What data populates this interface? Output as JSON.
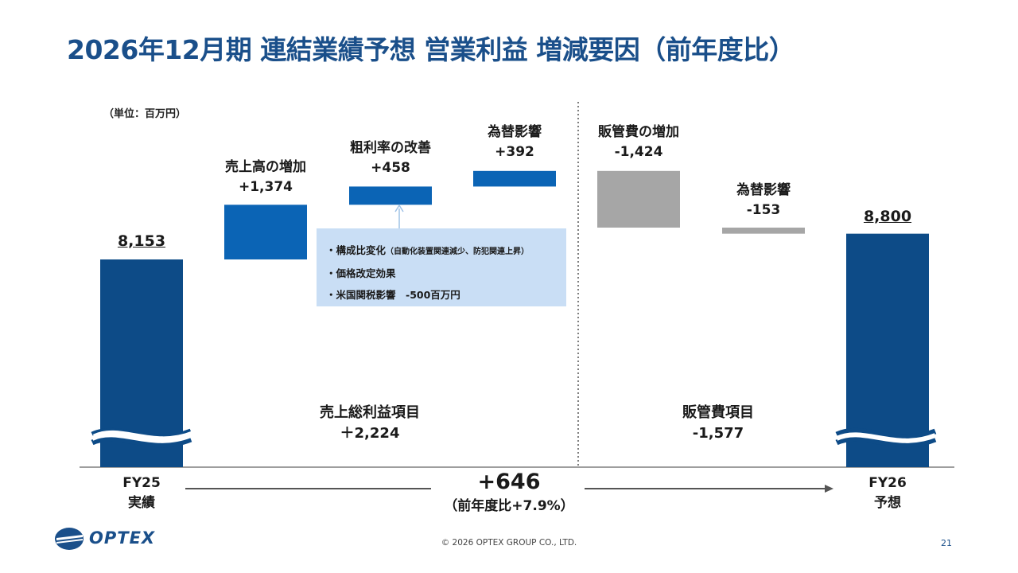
{
  "title": "2026年12月期 連結業績予想 営業利益 増減要因（前年度比）",
  "unit": "（単位：百万円）",
  "chart_data": {
    "type": "waterfall",
    "bars": [
      {
        "key": "fy25",
        "label": "8,153",
        "start": 0,
        "value": 8153,
        "kind": "total",
        "color": "#0d4b87"
      },
      {
        "key": "sales",
        "name": "売上高の増加",
        "label": "+1,374",
        "value": 1374,
        "kind": "increase",
        "color": "#0b64b5"
      },
      {
        "key": "gross",
        "name": "粗利率の改善",
        "label": "+458",
        "value": 458,
        "kind": "increase",
        "color": "#0b64b5"
      },
      {
        "key": "fx1",
        "name": "為替影響",
        "label": "+392",
        "value": 392,
        "kind": "increase",
        "color": "#0b64b5"
      },
      {
        "key": "sga",
        "name": "販管費の増加",
        "label": "-1,424",
        "value": -1424,
        "kind": "decrease",
        "color": "#a6a6a6"
      },
      {
        "key": "fx2",
        "name": "為替影響",
        "label": "-153",
        "value": -153,
        "kind": "decrease",
        "color": "#a6a6a6"
      },
      {
        "key": "fy26",
        "label": "8,800",
        "start": 0,
        "value": 8800,
        "kind": "total",
        "color": "#0d4b87"
      }
    ],
    "groups": [
      {
        "name": "売上総利益項目",
        "value": "＋2,224"
      },
      {
        "name": "販管費項目",
        "value": "-1,577"
      }
    ],
    "x_labels": [
      {
        "line1": "FY25",
        "line2": "実績"
      },
      {
        "line1": "FY26",
        "line2": "予想"
      }
    ],
    "total_change": "+646",
    "total_change_pct": "（前年度比+7.9%）",
    "callout": [
      {
        "text": "・構成比変化",
        "note": "（自動化装置関連減少、防犯関連上昇）"
      },
      {
        "text": "・価格改定効果",
        "note": ""
      },
      {
        "text": "・米国関税影響　-500百万円",
        "note": ""
      }
    ]
  },
  "footer": {
    "copyright": "© 2026 OPTEX GROUP CO., LTD.",
    "page": "21",
    "logo_text": "OPTEX"
  }
}
